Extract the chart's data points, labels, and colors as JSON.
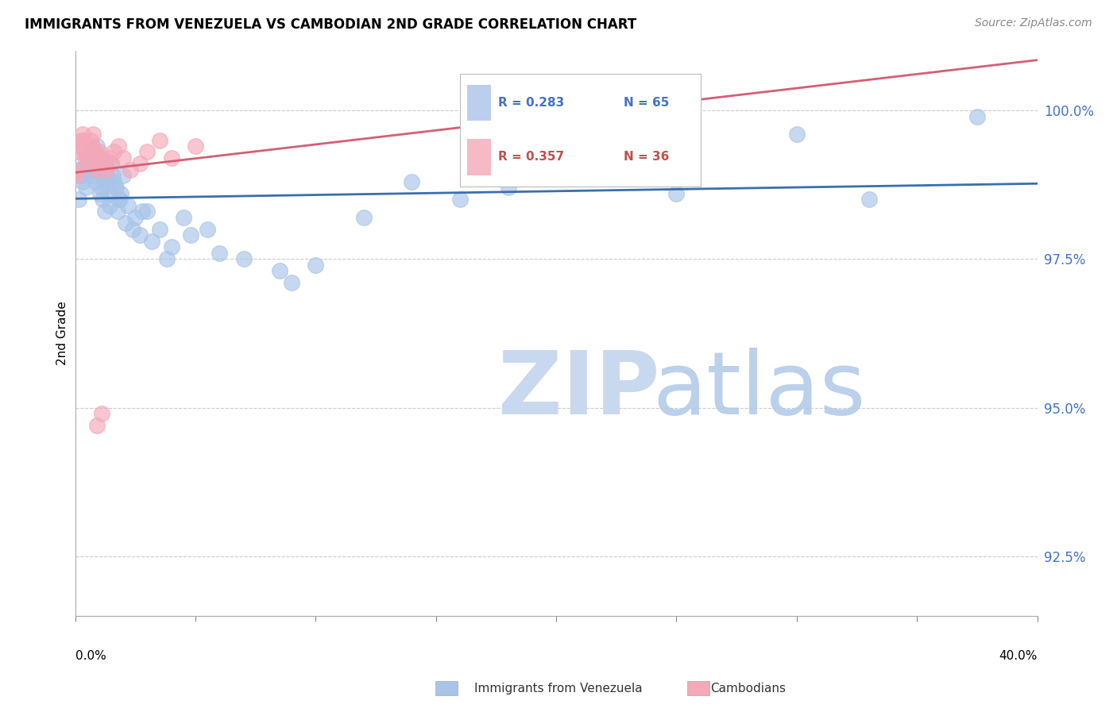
{
  "title": "IMMIGRANTS FROM VENEZUELA VS CAMBODIAN 2ND GRADE CORRELATION CHART",
  "source": "Source: ZipAtlas.com",
  "ylabel": "2nd Grade",
  "yticks": [
    92.5,
    95.0,
    97.5,
    100.0
  ],
  "ytick_labels": [
    "92.5%",
    "95.0%",
    "97.5%",
    "100.0%"
  ],
  "xmin": 0.0,
  "xmax": 40.0,
  "ymin": 91.5,
  "ymax": 101.0,
  "blue_R": 0.283,
  "blue_N": 65,
  "pink_R": 0.357,
  "pink_N": 36,
  "blue_color": "#a8c4e8",
  "pink_color": "#f4a8b8",
  "blue_line_color": "#3a6fad",
  "pink_line_color": "#d45f75",
  "legend_blue_text_color": "#4472c4",
  "legend_pink_text_color": "#c0504d",
  "watermark_zip_color": "#c8d8ef",
  "watermark_atlas_color": "#b0c8e8",
  "blue_x": [
    0.2,
    0.3,
    0.4,
    0.5,
    0.6,
    0.7,
    0.8,
    0.9,
    1.0,
    1.1,
    1.2,
    1.3,
    1.4,
    1.5,
    1.6,
    1.7,
    1.8,
    1.9,
    2.0,
    2.2,
    2.5,
    2.8,
    3.2,
    3.8,
    4.5,
    5.5,
    7.0,
    8.5,
    10.0,
    12.0,
    14.0,
    16.0,
    18.0,
    30.0,
    33.0,
    37.5,
    0.15,
    0.25,
    0.35,
    0.45,
    0.55,
    0.65,
    0.75,
    0.85,
    0.95,
    1.05,
    1.15,
    1.25,
    1.35,
    1.45,
    1.55,
    1.65,
    1.75,
    1.85,
    2.1,
    2.4,
    2.7,
    3.0,
    3.5,
    4.0,
    4.8,
    6.0,
    9.0,
    20.0,
    25.0
  ],
  "blue_y": [
    99.0,
    98.8,
    99.2,
    99.1,
    99.3,
    98.9,
    99.0,
    99.4,
    99.2,
    98.7,
    98.8,
    98.9,
    98.6,
    99.1,
    98.8,
    98.7,
    98.5,
    98.6,
    98.9,
    98.4,
    98.2,
    98.3,
    97.8,
    97.5,
    98.2,
    98.0,
    97.5,
    97.3,
    97.4,
    98.2,
    98.8,
    98.5,
    98.7,
    99.6,
    98.5,
    99.9,
    98.5,
    98.9,
    99.0,
    98.7,
    99.2,
    98.9,
    99.1,
    98.8,
    99.0,
    98.6,
    98.5,
    98.3,
    98.8,
    98.4,
    98.9,
    98.7,
    98.3,
    98.5,
    98.1,
    98.0,
    97.9,
    98.3,
    98.0,
    97.7,
    97.9,
    97.6,
    97.1,
    99.0,
    98.6
  ],
  "pink_x": [
    0.05,
    0.1,
    0.15,
    0.2,
    0.25,
    0.3,
    0.35,
    0.4,
    0.45,
    0.5,
    0.55,
    0.6,
    0.65,
    0.7,
    0.75,
    0.8,
    0.85,
    0.9,
    0.95,
    1.0,
    1.1,
    1.2,
    1.3,
    1.4,
    1.5,
    1.6,
    1.8,
    2.0,
    2.3,
    2.7,
    3.0,
    3.5,
    4.0,
    5.0,
    0.9,
    1.1
  ],
  "pink_y": [
    98.9,
    99.0,
    99.3,
    99.4,
    99.5,
    99.6,
    99.5,
    99.3,
    99.4,
    99.2,
    99.1,
    99.3,
    99.5,
    99.4,
    99.6,
    99.3,
    99.1,
    99.0,
    99.2,
    99.3,
    99.2,
    99.1,
    99.0,
    99.2,
    99.1,
    99.3,
    99.4,
    99.2,
    99.0,
    99.1,
    99.3,
    99.5,
    99.2,
    99.4,
    94.7,
    94.9
  ],
  "xtick_positions": [
    0.0,
    5.0,
    10.0,
    15.0,
    20.0,
    25.0,
    30.0,
    35.0,
    40.0
  ]
}
